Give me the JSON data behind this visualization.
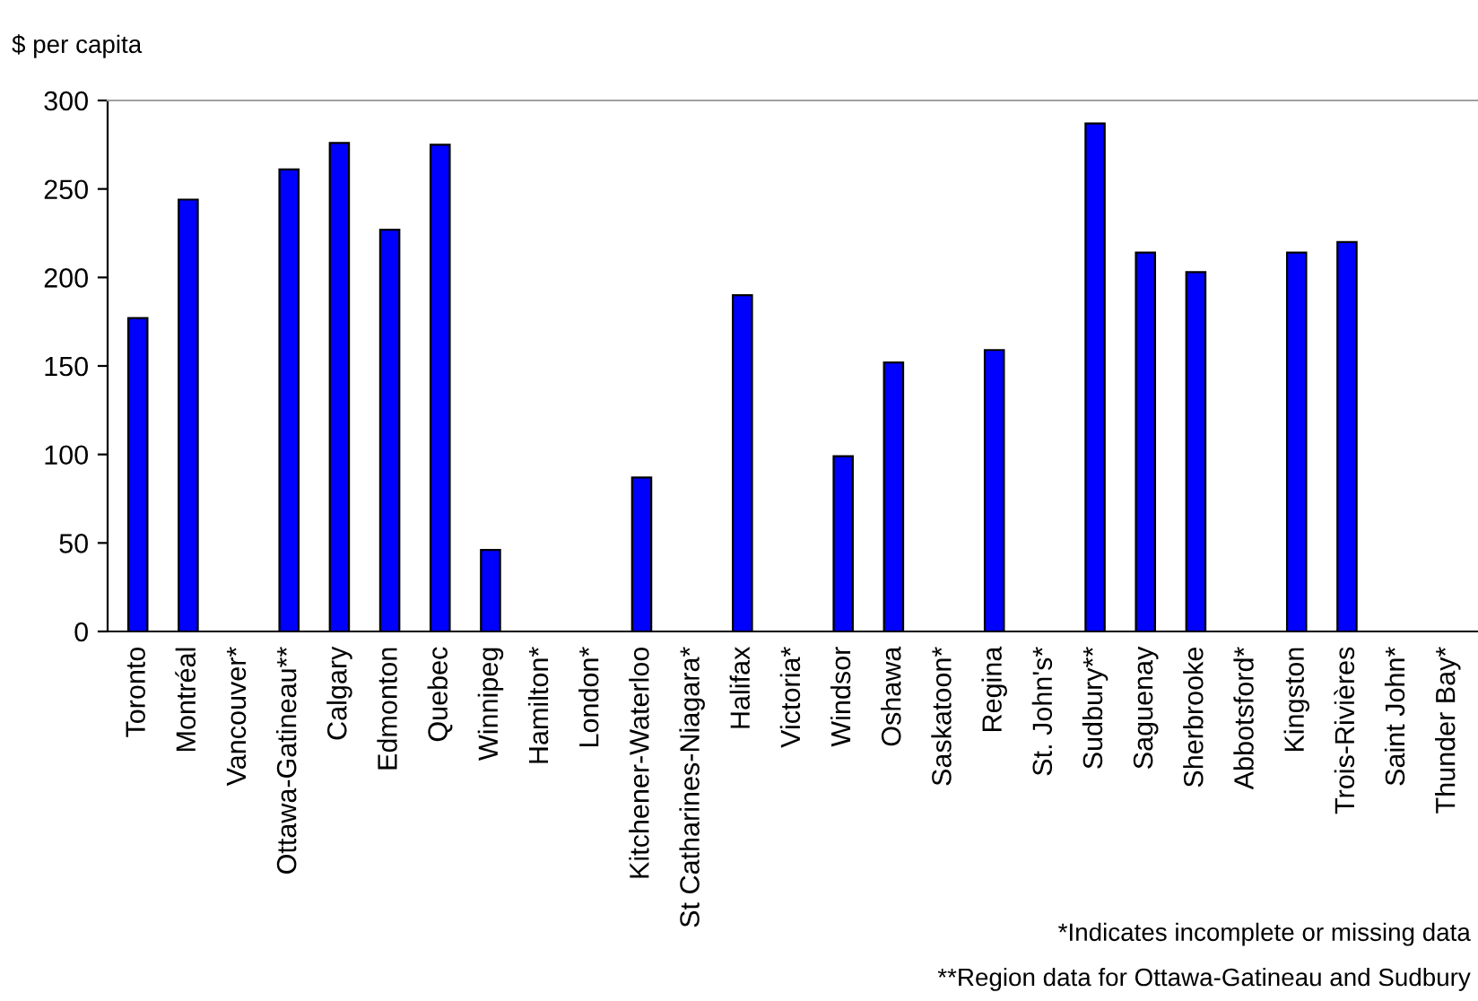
{
  "chart_data": {
    "type": "bar",
    "ylabel": "$ per capita",
    "categories": [
      "Toronto",
      "Montréal",
      "Vancouver*",
      "Ottawa-Gatineau**",
      "Calgary",
      "Edmonton",
      "Quebec",
      "Winnipeg",
      "Hamilton*",
      "London*",
      "Kitchener-Waterloo",
      "St Catharines-Niagara*",
      "Halifax",
      "Victoria*",
      "Windsor",
      "Oshawa",
      "Saskatoon*",
      "Regina",
      "St. John's*",
      "Sudbury**",
      "Saguenay",
      "Sherbrooke",
      "Abbotsford*",
      "Kingston",
      "Trois-Rivières",
      "Saint John*",
      "Thunder Bay*"
    ],
    "values": [
      177,
      244,
      null,
      261,
      276,
      227,
      275,
      46,
      null,
      null,
      87,
      null,
      190,
      null,
      99,
      152,
      null,
      159,
      null,
      287,
      214,
      203,
      null,
      214,
      220,
      null,
      null
    ],
    "color": "#0000ff",
    "ylim": [
      0,
      300
    ],
    "yticks": [
      0,
      50,
      100,
      150,
      200,
      250,
      300
    ],
    "grid": false,
    "annotations": [
      "*Indicates incomplete or missing data",
      "**Region data for Ottawa-Gatineau and Sudbury"
    ]
  }
}
